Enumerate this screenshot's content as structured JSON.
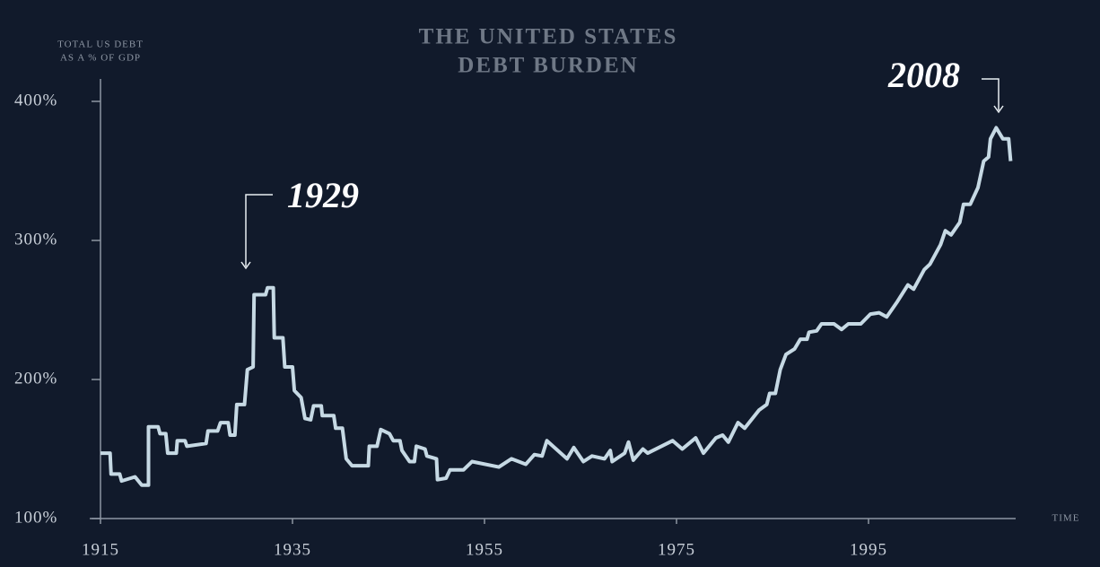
{
  "chart_data": {
    "type": "line",
    "title": [
      "THE UNITED STATES",
      "DEBT BURDEN"
    ],
    "y_label": [
      "TOTAL US DEBT",
      "AS A % OF GDP"
    ],
    "x_label": "TIME",
    "annotations": [
      "1929",
      "2008"
    ],
    "xlim": [
      1915,
      2010
    ],
    "xticks": [
      1915,
      1935,
      1955,
      1975,
      1995
    ],
    "ylim": [
      100,
      400
    ],
    "yticks": [
      {
        "value": 100,
        "label": "100%"
      },
      {
        "value": 200,
        "label": "200%"
      },
      {
        "value": 300,
        "label": "300%"
      },
      {
        "value": 400,
        "label": "400%"
      }
    ],
    "color": "#c6d9e4",
    "x": [
      1915,
      1916,
      1916.1,
      1917,
      1917.2,
      1918.6,
      1919.3,
      1920,
      1920,
      1921,
      1921.2,
      1921.8,
      1922,
      1922.9,
      1923,
      1923.8,
      1924,
      1926,
      1926.2,
      1927.2,
      1927.5,
      1928.3,
      1928.5,
      1929,
      1929.2,
      1930,
      1930.3,
      1930.9,
      1931,
      1932.2,
      1932.4,
      1933,
      1933.1,
      1934,
      1934.2,
      1935,
      1935.2,
      1935.9,
      1936.3,
      1936.9,
      1937.2,
      1938,
      1938.1,
      1939.3,
      1939.5,
      1940.2,
      1940.6,
      1941.2,
      1942.9,
      1943,
      1943.8,
      1944.2,
      1945.1,
      1945.5,
      1946.2,
      1946.4,
      1947.2,
      1947.7,
      1947.9,
      1948.8,
      1949,
      1950,
      1950.1,
      1951,
      1951.4,
      1952.8,
      1953.7,
      1956.5,
      1957.8,
      1959.3,
      1960.2,
      1961,
      1961.5,
      1963.6,
      1964.3,
      1965.3,
      1966.2,
      1967.5,
      1968.1,
      1968.3,
      1969.6,
      1970,
      1970.5,
      1971.5,
      1972,
      1974.6,
      1975.6,
      1977,
      1977.8,
      1979.1,
      1979.8,
      1980.4,
      1981.4,
      1982.1,
      1983.6,
      1984.4,
      1984.7,
      1985.3,
      1985.8,
      1986.4,
      1987.3,
      1987.9,
      1988.6,
      1988.8,
      1989.6,
      1990.1,
      1991.4,
      1992.2,
      1992.9,
      1994.2,
      1995.2,
      1996.1,
      1996.9,
      1998,
      1999.1,
      1999.7,
      2000.8,
      2001.4,
      2002.5,
      2003,
      2003.6,
      2004.5,
      2004.9,
      2005.6,
      2006.4,
      2007,
      2007.5,
      2007.7,
      2008.3,
      2009,
      2009.6,
      2009.8
    ],
    "values": [
      147,
      147,
      132,
      132,
      127,
      130,
      124,
      124,
      166,
      166,
      161,
      161,
      147,
      147,
      156,
      156,
      152,
      154,
      163,
      163,
      169,
      169,
      160,
      160,
      182,
      182,
      207,
      209,
      261,
      261,
      266,
      266,
      230,
      230,
      209,
      209,
      192,
      187,
      172,
      171,
      181,
      181,
      174,
      174,
      165,
      165,
      143,
      138,
      138,
      152,
      152,
      164,
      161,
      156,
      156,
      149,
      141,
      141,
      152,
      150,
      145,
      143,
      128,
      129,
      135,
      135,
      141,
      137,
      143,
      139,
      146,
      145,
      156,
      143,
      151,
      141,
      145,
      143,
      149,
      141,
      147,
      155,
      142,
      150,
      147,
      156,
      150,
      158,
      147,
      158,
      160,
      155,
      169,
      165,
      178,
      182,
      190,
      190,
      207,
      218,
      222,
      229,
      229,
      234,
      235,
      240,
      240,
      236,
      240,
      240,
      247,
      248,
      245,
      256,
      268,
      265,
      279,
      283,
      297,
      307,
      304,
      313,
      326,
      326,
      338,
      357,
      360,
      373,
      381,
      373,
      373,
      357
    ]
  }
}
